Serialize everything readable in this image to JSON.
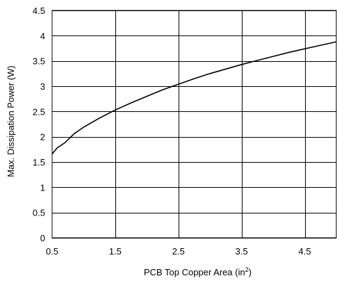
{
  "chart_data": {
    "type": "line",
    "title": "",
    "xlabel": "PCB Top Copper Area (in",
    "xlabel_sup": "2",
    "xlabel_end": ")",
    "ylabel": "Max. Dissipation Power (W)",
    "xlim": [
      0.5,
      5.0
    ],
    "ylim": [
      0,
      4.5
    ],
    "grid": true,
    "x_ticks": [
      0.5,
      1.5,
      2.5,
      3.5,
      4.5
    ],
    "x_tick_labels": [
      "0.5",
      "1.5",
      "2.5",
      "3.5",
      "4.5"
    ],
    "x_grid": [
      1.5,
      2.5,
      3.5,
      4.5
    ],
    "y_ticks": [
      0,
      0.5,
      1,
      1.5,
      2,
      2.5,
      3,
      3.5,
      4,
      4.5
    ],
    "y_tick_labels": [
      "0",
      "0.5",
      "1",
      "1.5",
      "2",
      "2.5",
      "3",
      "3.5",
      "4",
      "4.5"
    ],
    "series": [
      {
        "x": [
          0.5,
          0.58,
          0.7,
          0.85,
          1.0,
          1.25,
          1.5,
          1.75,
          2.0,
          2.25,
          2.5,
          2.75,
          3.0,
          3.25,
          3.5,
          3.75,
          4.0,
          4.25,
          4.5,
          4.75,
          5.0
        ],
        "y": [
          1.66,
          1.78,
          1.88,
          2.06,
          2.19,
          2.37,
          2.53,
          2.67,
          2.8,
          2.93,
          3.04,
          3.15,
          3.25,
          3.34,
          3.43,
          3.51,
          3.59,
          3.67,
          3.74,
          3.81,
          3.88
        ]
      }
    ]
  }
}
